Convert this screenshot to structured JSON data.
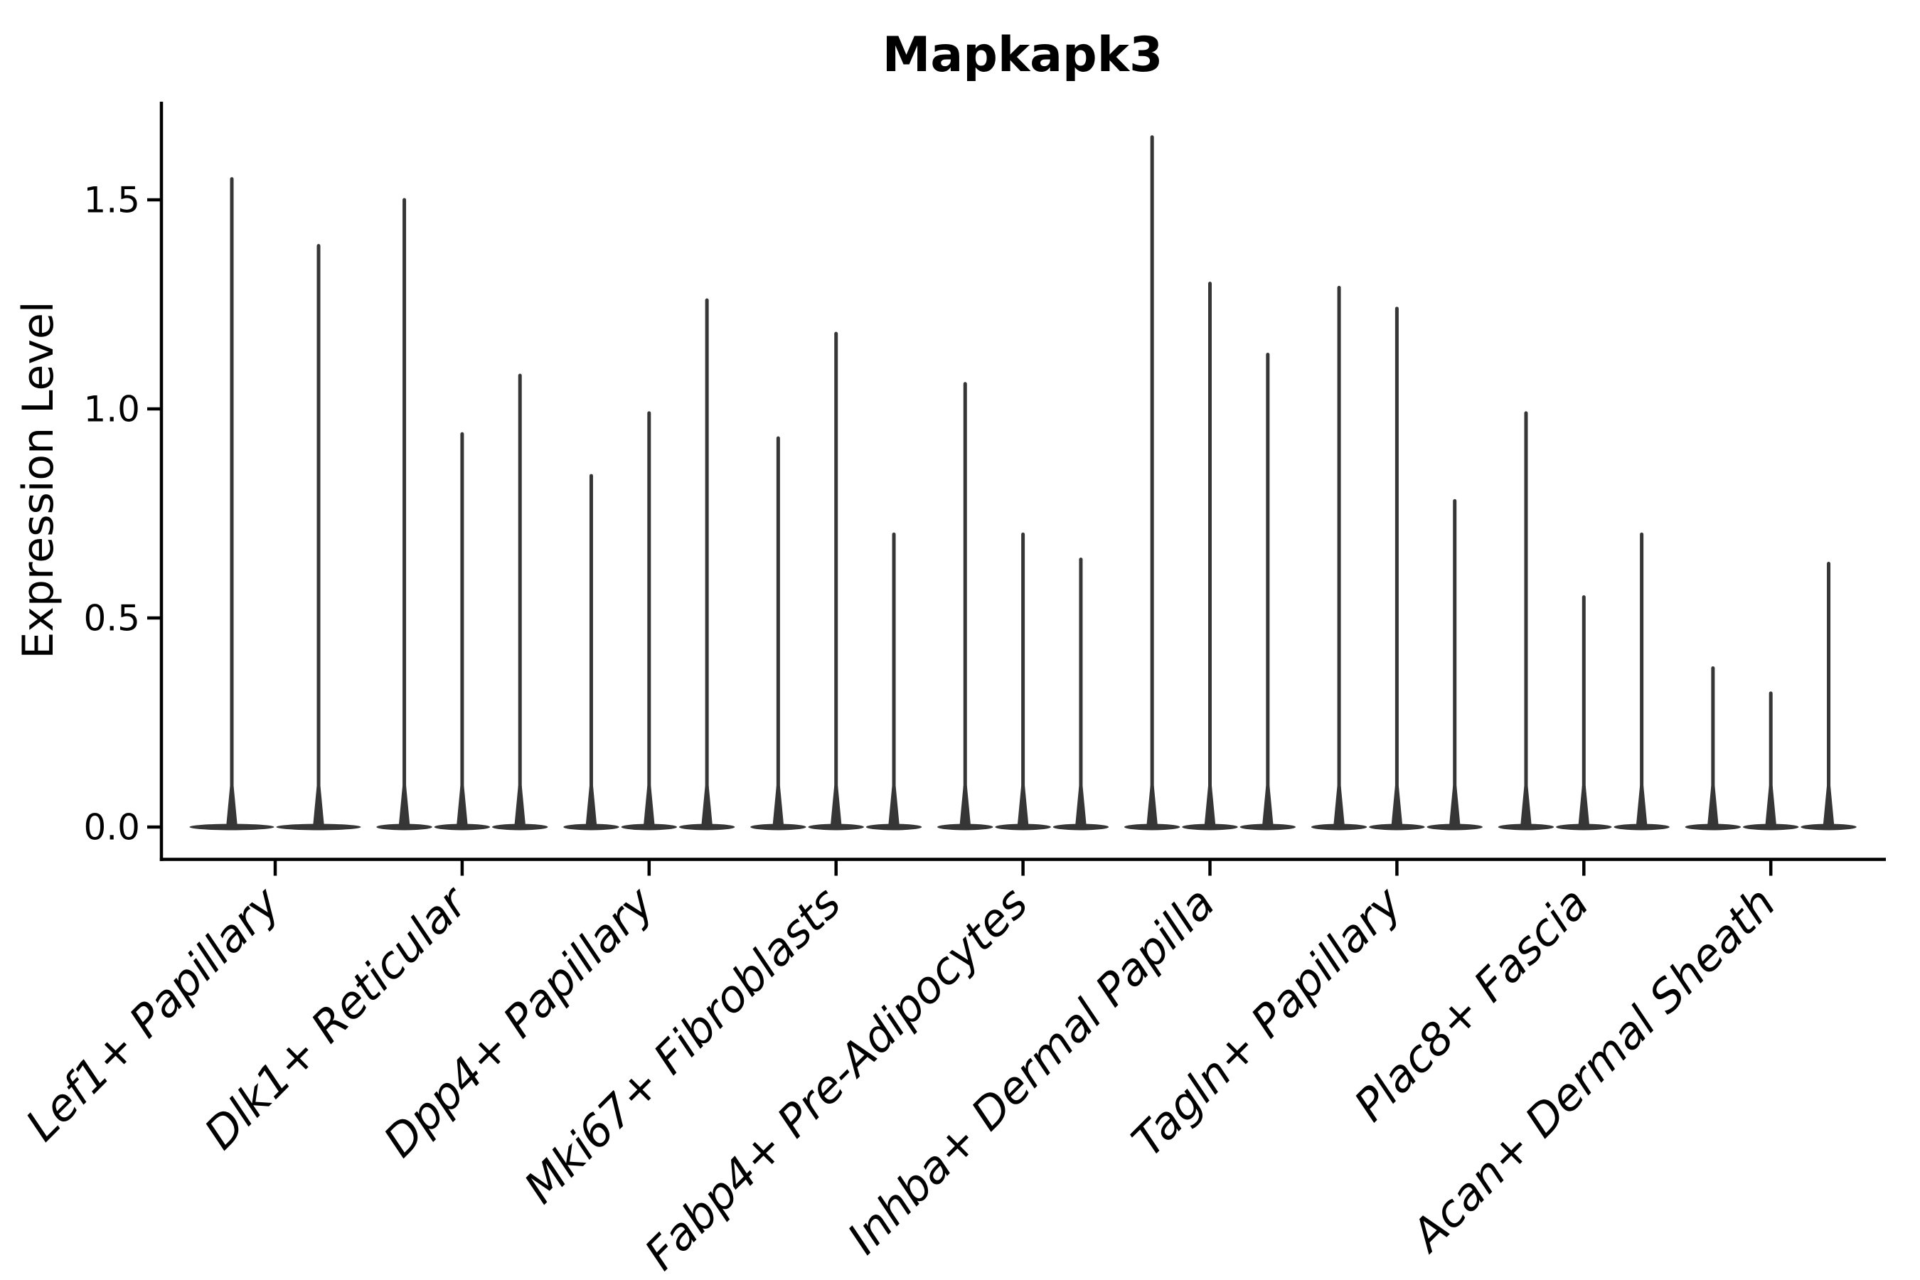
{
  "chart_data": {
    "type": "violin",
    "title": "Mapkapk3",
    "ylabel": "Expression Level",
    "xlabel": "",
    "grid": false,
    "legend_position": "none",
    "ylim": [
      -0.08,
      1.73
    ],
    "ytick_labels": [
      "0.0",
      "0.5",
      "1.0",
      "1.5"
    ],
    "ytick_values": [
      0.0,
      0.5,
      1.0,
      1.5
    ],
    "categories": [
      "Lef1+ Papillary",
      "Dlk1+ Reticular",
      "Dpp4+ Papillary",
      "Mki67+ Fibroblasts",
      "Fabp4+ Pre-Adipocytes",
      "Inhba+ Dermal Papilla",
      "Tagln+ Papillary",
      "Plac8+ Fascia",
      "Acan+ Dermal Sheath"
    ],
    "groups": [
      {
        "label": "Lef1+ Papillary",
        "violin_max_values": [
          1.55,
          1.39
        ]
      },
      {
        "label": "Dlk1+ Reticular",
        "violin_max_values": [
          1.5,
          0.94,
          1.08
        ]
      },
      {
        "label": "Dpp4+ Papillary",
        "violin_max_values": [
          0.84,
          0.99,
          1.26
        ]
      },
      {
        "label": "Mki67+ Fibroblasts",
        "violin_max_values": [
          0.93,
          1.18,
          0.7
        ]
      },
      {
        "label": "Fabp4+ Pre-Adipocytes",
        "violin_max_values": [
          1.06,
          0.7,
          0.64
        ]
      },
      {
        "label": "Inhba+ Dermal Papilla",
        "violin_max_values": [
          1.65,
          1.3,
          1.13
        ]
      },
      {
        "label": "Tagln+ Papillary",
        "violin_max_values": [
          1.29,
          1.24,
          0.78
        ]
      },
      {
        "label": "Plac8+ Fascia",
        "violin_max_values": [
          0.99,
          0.55,
          0.7
        ]
      },
      {
        "label": "Acan+ Dermal Sheath",
        "violin_max_values": [
          0.38,
          0.32,
          0.63
        ]
      }
    ],
    "violin_shape_note": "narrow spike violins: density mass at 0 with thin line up to max expression",
    "colors": {
      "violin": "#363636",
      "axis": "#000000",
      "text": "#000000",
      "background": "#ffffff"
    }
  }
}
